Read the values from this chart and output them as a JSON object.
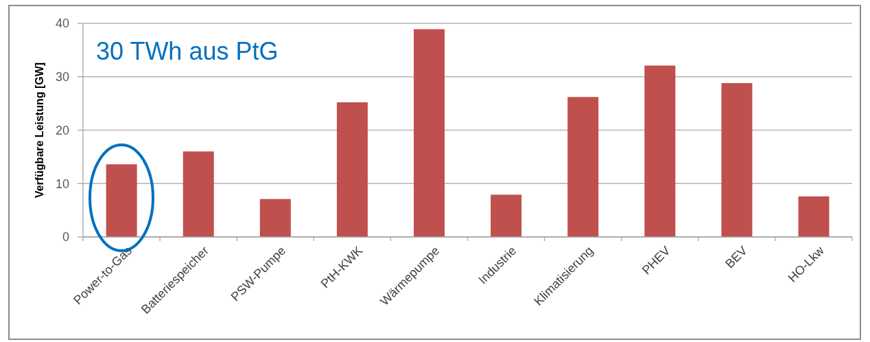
{
  "chart_data": {
    "type": "bar",
    "ylabel": "Verfügbare Leistung [GW]",
    "annotations": [
      "30 TWh aus PtG"
    ],
    "categories": [
      "Power-to-Gas",
      "Batteriespeicher",
      "PSW-Pumpe",
      "PtH-KWK",
      "Wärmepumpe",
      "Industrie",
      "Klimatisierung",
      "PHEV",
      "BEV",
      "HO-Lkw"
    ],
    "values": [
      13.6,
      16.0,
      7.1,
      25.2,
      38.9,
      7.9,
      26.2,
      32.1,
      28.8,
      7.6
    ],
    "color": "#c0504d",
    "ylim": [
      0,
      40
    ],
    "yticks": [
      0,
      10,
      20,
      30,
      40
    ],
    "grid": "y"
  }
}
